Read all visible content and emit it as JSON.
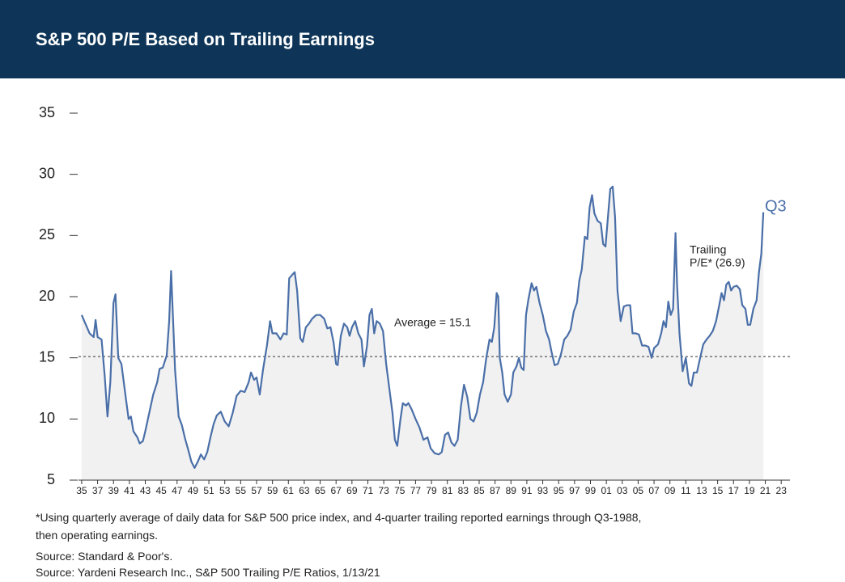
{
  "chart_data": {
    "type": "line",
    "title": "S&P 500 P/E Based on Trailing Earnings",
    "x": [
      1935.0,
      1936.0,
      1936.5,
      1936.75,
      1937.0,
      1937.5,
      1937.9,
      1938.25,
      1938.6,
      1939.0,
      1939.25,
      1939.6,
      1940.0,
      1940.5,
      1940.9,
      1941.2,
      1941.5,
      1942.0,
      1942.3,
      1942.7,
      1943.0,
      1943.5,
      1944.0,
      1944.5,
      1944.8,
      1945.2,
      1945.7,
      1946.0,
      1946.25,
      1946.5,
      1946.75,
      1947.2,
      1947.6,
      1948.0,
      1948.4,
      1948.8,
      1949.2,
      1949.6,
      1950.0,
      1950.4,
      1950.8,
      1951.2,
      1951.6,
      1952.0,
      1952.5,
      1953.0,
      1953.5,
      1954.0,
      1954.5,
      1955.0,
      1955.5,
      1956.0,
      1956.3,
      1956.7,
      1957.0,
      1957.4,
      1957.8,
      1958.3,
      1958.7,
      1959.0,
      1959.5,
      1960.0,
      1960.4,
      1960.8,
      1961.1,
      1961.5,
      1961.8,
      1962.1,
      1962.5,
      1962.8,
      1963.2,
      1963.6,
      1964.0,
      1964.5,
      1965.0,
      1965.5,
      1965.9,
      1966.3,
      1966.7,
      1967.0,
      1967.2,
      1967.6,
      1968.0,
      1968.4,
      1968.7,
      1969.0,
      1969.4,
      1969.8,
      1970.2,
      1970.5,
      1970.9,
      1971.2,
      1971.5,
      1971.8,
      1972.1,
      1972.5,
      1972.9,
      1973.3,
      1973.7,
      1974.1,
      1974.4,
      1974.7,
      1975.1,
      1975.4,
      1975.8,
      1976.1,
      1976.5,
      1977.0,
      1977.5,
      1978.0,
      1978.5,
      1978.9,
      1979.4,
      1979.9,
      1980.3,
      1980.7,
      1981.1,
      1981.5,
      1981.9,
      1982.3,
      1982.7,
      1983.1,
      1983.5,
      1983.9,
      1984.3,
      1984.7,
      1985.1,
      1985.5,
      1985.9,
      1986.3,
      1986.6,
      1986.9,
      1987.2,
      1987.4,
      1987.6,
      1987.9,
      1988.2,
      1988.6,
      1989.0,
      1989.3,
      1989.7,
      1990.0,
      1990.3,
      1990.6,
      1990.9,
      1991.2,
      1991.6,
      1991.9,
      1992.2,
      1992.6,
      1993.0,
      1993.4,
      1993.8,
      1994.1,
      1994.5,
      1994.9,
      1995.3,
      1995.7,
      1996.1,
      1996.5,
      1996.9,
      1997.3,
      1997.6,
      1997.9,
      1998.3,
      1998.6,
      1998.9,
      1999.2,
      1999.5,
      1999.9,
      2000.3,
      2000.6,
      2000.9,
      2001.2,
      2001.5,
      2001.8,
      2002.1,
      2002.4,
      2002.8,
      2003.2,
      2003.6,
      2004.0,
      2004.3,
      2004.7,
      2005.1,
      2005.5,
      2005.9,
      2006.3,
      2006.7,
      2007.0,
      2007.5,
      2007.9,
      2008.2,
      2008.5,
      2008.8,
      2009.1,
      2009.4,
      2009.7,
      2009.9,
      2010.2,
      2010.6,
      2011.0,
      2011.4,
      2011.7,
      2012.0,
      2012.4,
      2012.8,
      2013.2,
      2013.6,
      2014.0,
      2014.4,
      2014.8,
      2015.2,
      2015.5,
      2015.8,
      2016.1,
      2016.4,
      2016.7,
      2017.0,
      2017.4,
      2017.8,
      2018.1,
      2018.5,
      2018.8,
      2019.1,
      2019.5,
      2019.9,
      2020.2,
      2020.5,
      2020.75
    ],
    "values": [
      18.5,
      17,
      16.7,
      18.1,
      16.7,
      16.5,
      13.5,
      10.2,
      13,
      19.5,
      20.2,
      15,
      14.5,
      12,
      10,
      10.2,
      9,
      8.5,
      8,
      8.2,
      9,
      10.5,
      12,
      13,
      14.1,
      14.2,
      15.2,
      18,
      22.1,
      18,
      14,
      10.2,
      9.5,
      8.4,
      7.5,
      6.5,
      6,
      6.5,
      7.1,
      6.7,
      7.3,
      8.5,
      9.6,
      10.3,
      10.6,
      9.8,
      9.4,
      10.5,
      11.9,
      12.3,
      12.2,
      13,
      13.8,
      13.2,
      13.4,
      12,
      14,
      16,
      18,
      17,
      17,
      16.5,
      17,
      16.9,
      21.5,
      21.8,
      22,
      20.5,
      16.6,
      16.3,
      17.5,
      17.8,
      18.2,
      18.5,
      18.5,
      18.2,
      17.4,
      17.5,
      16.2,
      14.5,
      14.4,
      16.8,
      17.8,
      17.5,
      16.8,
      17.5,
      18,
      17,
      16.5,
      14.3,
      16,
      18.5,
      19,
      17,
      18,
      17.8,
      17.2,
      14.5,
      12.5,
      10.5,
      8.3,
      7.8,
      10,
      11.3,
      11.1,
      11.3,
      10.8,
      10,
      9.3,
      8.3,
      8.5,
      7.6,
      7.2,
      7.1,
      7.3,
      8.7,
      8.9,
      8.1,
      7.8,
      8.3,
      11,
      12.8,
      11.8,
      10,
      9.8,
      10.5,
      12,
      13,
      15,
      16.5,
      16.3,
      17.5,
      20.3,
      20,
      15,
      13.8,
      12,
      11.4,
      12,
      13.8,
      14.3,
      15,
      14.2,
      14,
      18.5,
      19.8,
      21.1,
      20.5,
      20.8,
      19.5,
      18.5,
      17.2,
      16.5,
      15.5,
      14.4,
      14.5,
      15.3,
      16.5,
      16.8,
      17.3,
      18.8,
      19.5,
      21.3,
      22.2,
      24.9,
      24.7,
      27.3,
      28.3,
      26.8,
      26.2,
      26,
      24.3,
      24.1,
      26.5,
      28.8,
      29,
      26.5,
      20.5,
      18,
      19.2,
      19.3,
      19.3,
      17,
      17,
      16.9,
      16,
      16,
      15.9,
      15,
      15.8,
      16.1,
      17,
      18,
      17.5,
      19.6,
      18.5,
      19,
      25.2,
      21,
      17,
      13.9,
      15,
      12.9,
      12.7,
      13.8,
      13.8,
      15,
      16.1,
      16.5,
      16.8,
      17.2,
      18,
      19.3,
      20.3,
      19.7,
      21,
      21.2,
      20.5,
      20.8,
      20.9,
      20.6,
      19.3,
      19,
      17.7,
      17.7,
      19,
      19.7,
      22,
      23.5,
      26.9
    ],
    "color": "#4a6fa8",
    "area_color": "#f1f1f1",
    "xlim": [
      1934.6,
      2024.1
    ],
    "ylim": [
      5,
      35
    ],
    "yticks": [
      5,
      10,
      15,
      20,
      25,
      30,
      35
    ],
    "xticks": [
      {
        "value": 1935,
        "label": "35"
      },
      {
        "value": 1937,
        "label": "37"
      },
      {
        "value": 1939,
        "label": "39"
      },
      {
        "value": 1941,
        "label": "41"
      },
      {
        "value": 1943,
        "label": "43"
      },
      {
        "value": 1945,
        "label": "45"
      },
      {
        "value": 1947,
        "label": "47"
      },
      {
        "value": 1949,
        "label": "49"
      },
      {
        "value": 1951,
        "label": "51"
      },
      {
        "value": 1953,
        "label": "53"
      },
      {
        "value": 1955,
        "label": "55"
      },
      {
        "value": 1957,
        "label": "57"
      },
      {
        "value": 1959,
        "label": "59"
      },
      {
        "value": 1961,
        "label": "61"
      },
      {
        "value": 1963,
        "label": "63"
      },
      {
        "value": 1965,
        "label": "65"
      },
      {
        "value": 1967,
        "label": "67"
      },
      {
        "value": 1969,
        "label": "69"
      },
      {
        "value": 1971,
        "label": "71"
      },
      {
        "value": 1973,
        "label": "73"
      },
      {
        "value": 1975,
        "label": "75"
      },
      {
        "value": 1977,
        "label": "77"
      },
      {
        "value": 1979,
        "label": "79"
      },
      {
        "value": 1981,
        "label": "81"
      },
      {
        "value": 1983,
        "label": "83"
      },
      {
        "value": 1985,
        "label": "85"
      },
      {
        "value": 1987,
        "label": "87"
      },
      {
        "value": 1989,
        "label": "89"
      },
      {
        "value": 1991,
        "label": "91"
      },
      {
        "value": 1993,
        "label": "93"
      },
      {
        "value": 1995,
        "label": "95"
      },
      {
        "value": 1997,
        "label": "97"
      },
      {
        "value": 1999,
        "label": "99"
      },
      {
        "value": 2001,
        "label": "01"
      },
      {
        "value": 2003,
        "label": "03"
      },
      {
        "value": 2005,
        "label": "05"
      },
      {
        "value": 2007,
        "label": "07"
      },
      {
        "value": 2009,
        "label": "09"
      },
      {
        "value": 2011,
        "label": "11"
      },
      {
        "value": 2013,
        "label": "13"
      },
      {
        "value": 2015,
        "label": "15"
      },
      {
        "value": 2017,
        "label": "17"
      },
      {
        "value": 2019,
        "label": "19"
      },
      {
        "value": 2021,
        "label": "21"
      },
      {
        "value": 2023,
        "label": "23"
      }
    ],
    "average": 15.1,
    "average_label": "Average = 15.1",
    "annotations": [
      "Q3",
      "Trailing",
      "P/E* (26.9)"
    ],
    "notes": [
      "*Using quarterly average of daily data for S&P 500 price index, and 4-quarter trailing reported earnings through Q3-1988,",
      "then operating earnings.",
      "Source: Standard & Poor's.",
      "Source: Yardeni Research Inc., S&P 500 Trailing P/E Ratios, 1/13/21"
    ]
  }
}
